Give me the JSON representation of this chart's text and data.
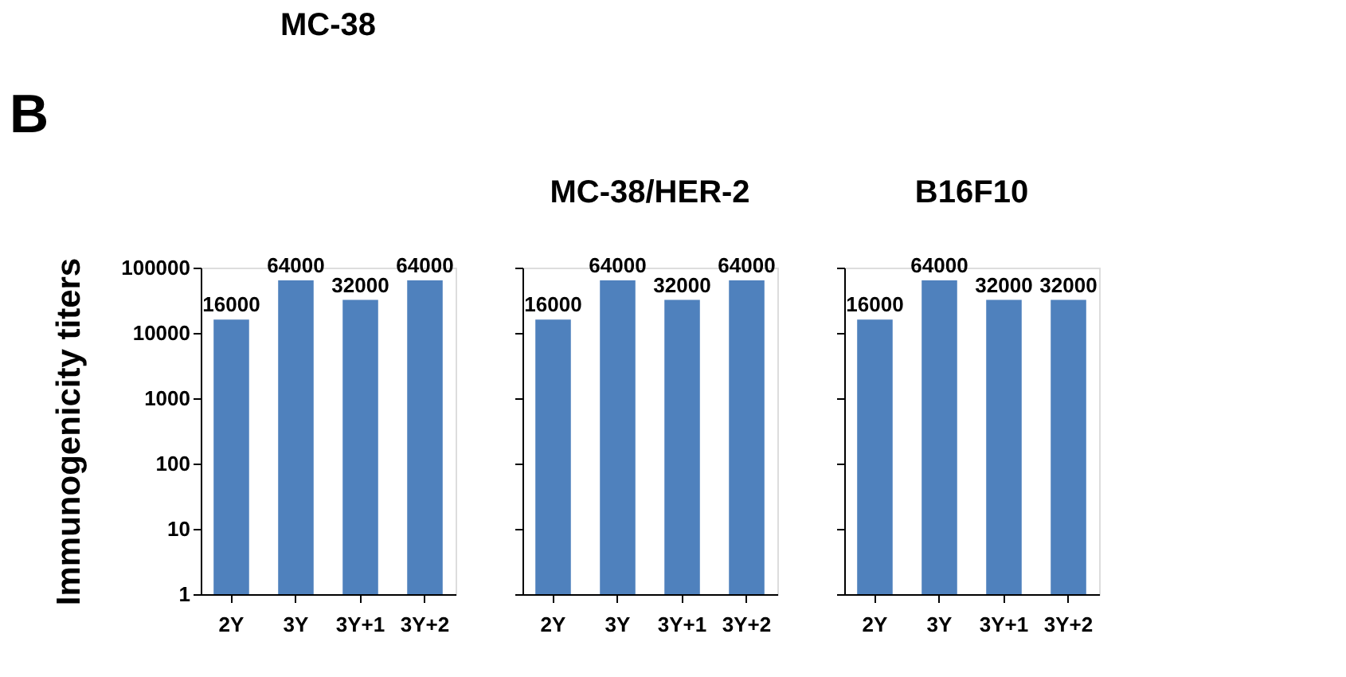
{
  "chart_data": [
    {
      "type": "bar",
      "title": "MC-38",
      "ylabel": "Immunogenicity titers",
      "annotations": [
        "B"
      ],
      "categories": [
        "2Y",
        "3Y",
        "3Y+1",
        "3Y+2"
      ],
      "values": [
        16000,
        64000,
        32000,
        64000
      ],
      "color": "#4f81bd",
      "log": true,
      "ylim": [
        1,
        100000
      ],
      "yticks": [
        1,
        10,
        100,
        1000,
        10000,
        100000
      ],
      "data_labels": true,
      "grid": false
    },
    {
      "type": "bar",
      "title": "MC-38/HER-2",
      "categories": [
        "2Y",
        "3Y",
        "3Y+1",
        "3Y+2"
      ],
      "values": [
        16000,
        64000,
        32000,
        64000
      ],
      "color": "#4f81bd",
      "log": true,
      "ylim": [
        1,
        100000
      ],
      "yticks": [
        1,
        10,
        100,
        1000,
        10000,
        100000
      ],
      "tick_labels": "x",
      "data_labels": true,
      "grid": false
    },
    {
      "type": "bar",
      "title": "B16F10",
      "categories": [
        "2Y",
        "3Y",
        "3Y+1",
        "3Y+2"
      ],
      "values": [
        16000,
        64000,
        32000,
        32000
      ],
      "color": "#4f81bd",
      "log": true,
      "ylim": [
        1,
        100000
      ],
      "yticks": [
        1,
        10,
        100,
        1000,
        10000,
        100000
      ],
      "tick_labels": "x",
      "data_labels": true,
      "grid": false
    }
  ]
}
